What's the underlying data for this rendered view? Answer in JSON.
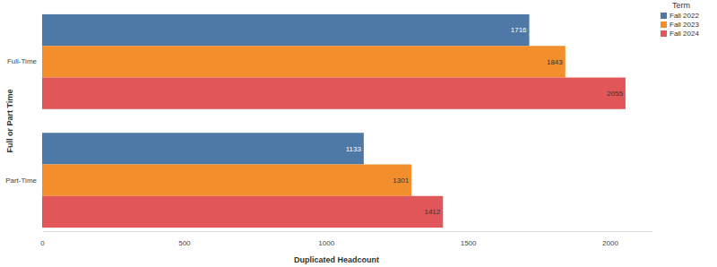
{
  "chart_data": {
    "type": "bar",
    "orientation": "horizontal",
    "x_label": "Duplicated Headcount",
    "y_label": "Full or Part Time",
    "legend_title": "Term",
    "categories": [
      "Full-Time",
      "Part-Time"
    ],
    "series": [
      {
        "name": "Fall 2022",
        "color": "#4e79a7",
        "values": [
          1716,
          1133
        ]
      },
      {
        "name": "Fall 2023",
        "color": "#f28e2b",
        "values": [
          1843,
          1301
        ]
      },
      {
        "name": "Fall 2024",
        "color": "#e15759",
        "values": [
          2055,
          1412
        ]
      }
    ],
    "xlim": [
      0,
      2150
    ],
    "xticks": [
      0,
      500,
      1000,
      1500,
      2000
    ],
    "data_labels": true,
    "legend": "upper right",
    "grid": false
  }
}
